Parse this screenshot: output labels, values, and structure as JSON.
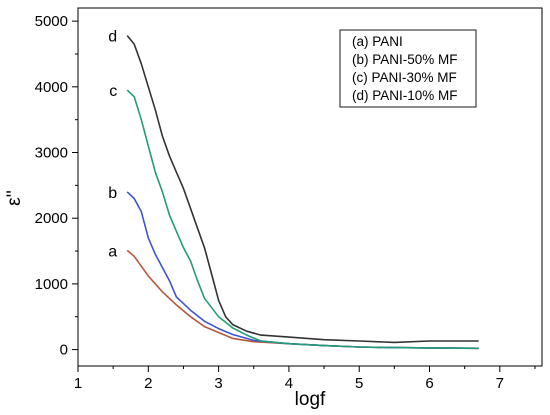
{
  "chart_data": {
    "type": "line",
    "xlabel": "logf",
    "ylabel": "ε''",
    "xlim": [
      1,
      7.6
    ],
    "ylim": [
      -250,
      5200
    ],
    "x_ticks": [
      1,
      2,
      3,
      4,
      5,
      6,
      7
    ],
    "y_ticks": [
      0,
      1000,
      2000,
      3000,
      4000,
      5000
    ],
    "legend": {
      "placement": "top-right",
      "entries": [
        "(a) PANI",
        "(b) PANI-50% MF",
        "(c) PANI-30% MF",
        "(d) PANI-10% MF"
      ]
    },
    "series": [
      {
        "tag": "a",
        "color": "#b5583a",
        "x": [
          1.7,
          1.8,
          1.9,
          2.0,
          2.2,
          2.4,
          2.6,
          2.8,
          3.0,
          3.2,
          3.5,
          4.0,
          4.5,
          5.0,
          5.5,
          6.0,
          6.7
        ],
        "y": [
          1510,
          1420,
          1270,
          1120,
          880,
          680,
          500,
          350,
          260,
          170,
          120,
          90,
          60,
          40,
          30,
          25,
          20
        ]
      },
      {
        "tag": "b",
        "color": "#3b55cf",
        "x": [
          1.7,
          1.8,
          1.9,
          2.0,
          2.1,
          2.2,
          2.3,
          2.4,
          2.5,
          2.6,
          2.8,
          3.0,
          3.2,
          3.5,
          4.0,
          4.5,
          5.0,
          5.5,
          6.0,
          6.7
        ],
        "y": [
          2400,
          2300,
          2100,
          1700,
          1450,
          1250,
          1050,
          800,
          700,
          600,
          430,
          320,
          230,
          140,
          90,
          60,
          40,
          30,
          25,
          20
        ]
      },
      {
        "tag": "c",
        "color": "#239b7a",
        "x": [
          1.7,
          1.8,
          1.9,
          2.0,
          2.1,
          2.2,
          2.3,
          2.4,
          2.5,
          2.6,
          2.7,
          2.8,
          3.0,
          3.2,
          3.4,
          3.6,
          4.0,
          4.5,
          5.0,
          5.5,
          6.0,
          6.7
        ],
        "y": [
          3950,
          3850,
          3500,
          3100,
          2700,
          2400,
          2050,
          1800,
          1550,
          1350,
          1050,
          780,
          500,
          330,
          220,
          130,
          90,
          60,
          40,
          30,
          25,
          20
        ]
      },
      {
        "tag": "d",
        "color": "#333333",
        "x": [
          1.7,
          1.8,
          1.9,
          2.0,
          2.1,
          2.2,
          2.3,
          2.4,
          2.5,
          2.6,
          2.7,
          2.8,
          2.9,
          3.0,
          3.1,
          3.2,
          3.4,
          3.6,
          4.0,
          4.5,
          5.0,
          5.5,
          6.0,
          6.7
        ],
        "y": [
          4780,
          4650,
          4350,
          4000,
          3650,
          3250,
          2950,
          2700,
          2450,
          2150,
          1850,
          1550,
          1150,
          750,
          500,
          380,
          280,
          220,
          190,
          150,
          130,
          110,
          130,
          130
        ]
      }
    ]
  }
}
